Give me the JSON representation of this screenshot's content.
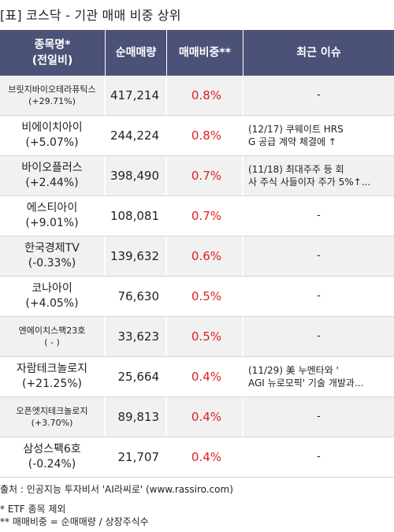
{
  "title": "[표] 코스닥 - 기관 매매 비중 상위",
  "header": {
    "name_line1": "종목명*",
    "name_line2": "(전일비)",
    "volume": "순매매량",
    "ratio": "매매비중**",
    "issue": "최근 이슈"
  },
  "rows": [
    {
      "name": "브릿지바이오테라퓨틱스",
      "change": "(+29.71%)",
      "volume": "417,214",
      "ratio": "0.8%",
      "issue_line1": "-",
      "issue_line2": ""
    },
    {
      "name": "비에이치아이",
      "change": "(+5.07%)",
      "volume": "244,224",
      "ratio": "0.8%",
      "issue_line1": "(12/17) 쿠웨이트 HRS",
      "issue_line2": "G 공급 계약 체결에 ↑"
    },
    {
      "name": "바이오플러스",
      "change": "(+2.44%)",
      "volume": "398,490",
      "ratio": "0.7%",
      "issue_line1": "(11/18) 최대주주 등 회",
      "issue_line2": "사 주식 사들이자 주가 5%↑..."
    },
    {
      "name": "에스티아이",
      "change": "(+9.01%)",
      "volume": "108,081",
      "ratio": "0.7%",
      "issue_line1": "-",
      "issue_line2": ""
    },
    {
      "name": "한국경제TV",
      "change": "(-0.33%)",
      "volume": "139,632",
      "ratio": "0.6%",
      "issue_line1": "-",
      "issue_line2": ""
    },
    {
      "name": "코나아이",
      "change": "(+4.05%)",
      "volume": "76,630",
      "ratio": "0.5%",
      "issue_line1": "-",
      "issue_line2": ""
    },
    {
      "name": "엔에이치스팩23호",
      "change": "( - )",
      "volume": "33,623",
      "ratio": "0.5%",
      "issue_line1": "-",
      "issue_line2": ""
    },
    {
      "name": "자람테크놀로지",
      "change": "(+21.25%)",
      "volume": "25,664",
      "ratio": "0.4%",
      "issue_line1": "(11/29) 美 누멘타와 '",
      "issue_line2": "AGI 뉴로모픽' 기술 개발과..."
    },
    {
      "name": "오픈엣지테크놀로지",
      "change": "(+3.70%)",
      "volume": "89,813",
      "ratio": "0.4%",
      "issue_line1": "-",
      "issue_line2": ""
    },
    {
      "name": "삼성스팩6호",
      "change": "(-0.24%)",
      "volume": "21,707",
      "ratio": "0.4%",
      "issue_line1": "-",
      "issue_line2": ""
    }
  ],
  "footer": {
    "source": "출처 : 인공지능 투자비서 'AI라씨로' (www.rassiro.com)",
    "note1": "* ETF 종목 제외",
    "note2": "** 매매비중 = 순매매량 / 상장주식수"
  },
  "colors": {
    "header_bg": "#4b5177",
    "ratio_text": "#e02020"
  }
}
